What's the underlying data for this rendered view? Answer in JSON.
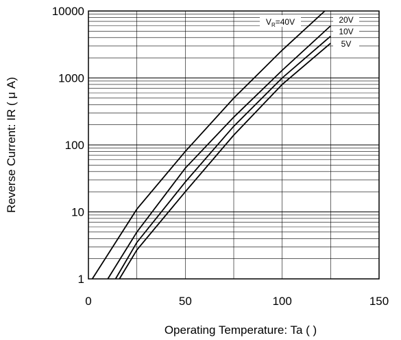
{
  "chart_data": {
    "type": "line",
    "xlabel": "Operating Temperature: Ta (   )",
    "ylabel": "Reverse Current: IR ( μ A)",
    "xlim": [
      0,
      150
    ],
    "ylim": [
      1,
      10000
    ],
    "yscale": "log",
    "grid": true,
    "x_ticks": [
      "0",
      "50",
      "100",
      "150"
    ],
    "y_ticks": [
      "1",
      "10",
      "100",
      "1000",
      "10000"
    ],
    "series": [
      {
        "name": "VR=40V",
        "label_main": "V",
        "label_sub": "R",
        "label_rest": "=40V",
        "x": [
          2,
          25,
          50,
          75,
          100,
          122
        ],
        "y": [
          1,
          11,
          80,
          500,
          2600,
          10000
        ]
      },
      {
        "name": "20V",
        "x": [
          10,
          25,
          50,
          75,
          100,
          125
        ],
        "y": [
          1,
          5,
          45,
          260,
          1300,
          6000
        ]
      },
      {
        "name": "10V",
        "x": [
          14,
          25,
          50,
          75,
          100,
          125
        ],
        "y": [
          1,
          3.5,
          28,
          190,
          1000,
          4200
        ]
      },
      {
        "name": "5V",
        "x": [
          16,
          25,
          50,
          75,
          100,
          125
        ],
        "y": [
          1,
          2.7,
          20,
          140,
          800,
          3300
        ]
      }
    ]
  }
}
